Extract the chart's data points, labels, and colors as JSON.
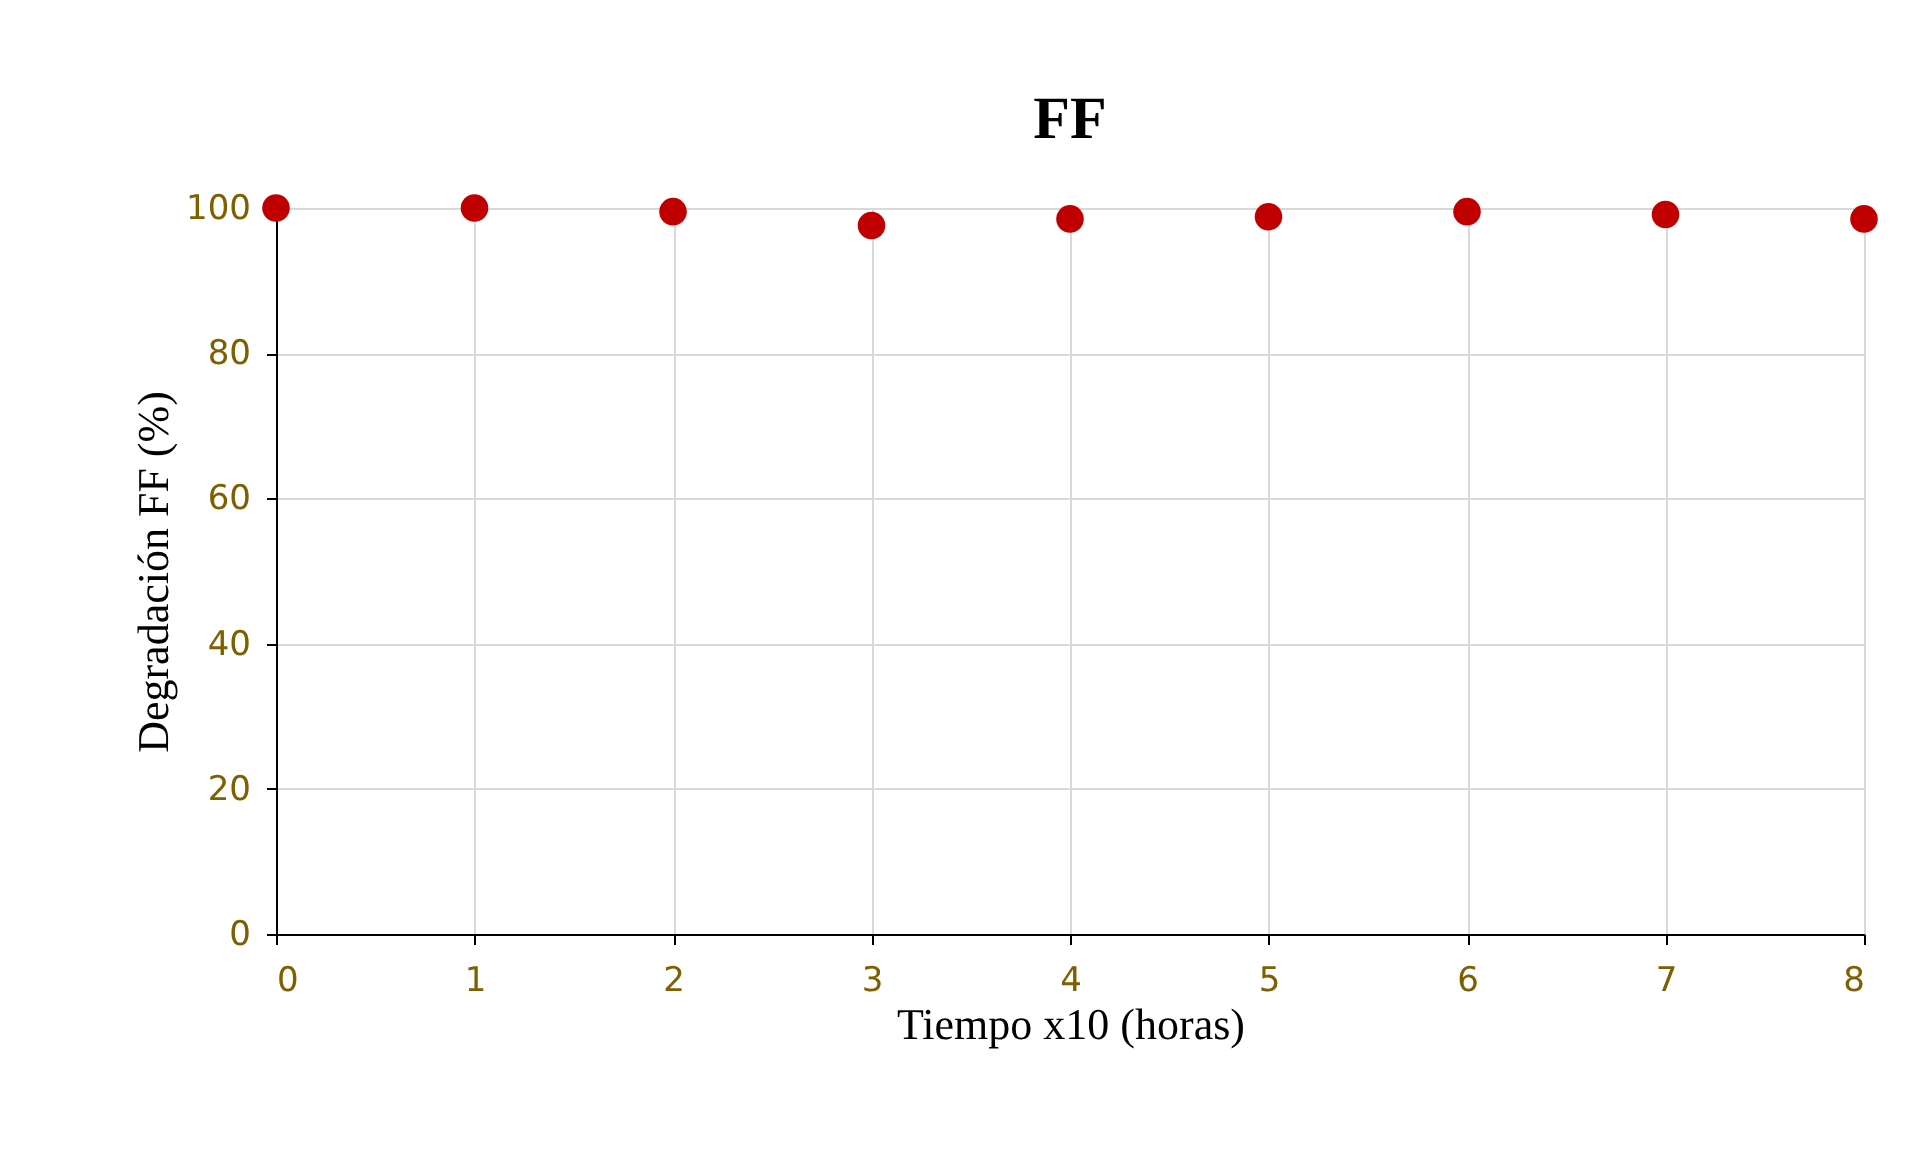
{
  "chart_data": {
    "type": "scatter",
    "title": "FF",
    "xlabel": "Tiempo x10 (horas)",
    "ylabel": "Degradación FF (%)",
    "x": [
      0,
      1,
      2,
      3,
      4,
      5,
      6,
      7,
      8
    ],
    "series": [
      {
        "color": "#c00000",
        "values": [
          100,
          100,
          99.5,
          97.6,
          98.5,
          98.8,
          99.5,
          99.1,
          98.5
        ]
      }
    ],
    "xlim": [
      0,
      8
    ],
    "xticks": [
      0,
      1,
      2,
      3,
      4,
      5,
      6,
      7,
      8
    ],
    "ylim": [
      0,
      100
    ],
    "yticks": [
      0,
      20,
      40,
      60,
      80,
      100
    ],
    "grid": true,
    "marker": "circle",
    "legend": false
  }
}
